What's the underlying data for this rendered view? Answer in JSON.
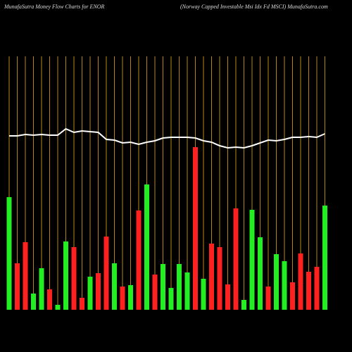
{
  "chart_data": {
    "type": "bar-line",
    "title": "MunafaSutra  Money Flow  Charts for ENOR",
    "subtitle": "(Norway Capped Investable   Msi Idx Fd MSCI) MunafaSutra.com",
    "ylim": [
      0,
      360
    ],
    "grid": true,
    "grid_color": "#b8860b",
    "bars": {
      "values": [
        160,
        66,
        96,
        23,
        59,
        29,
        7,
        97,
        89,
        17,
        47,
        52,
        104,
        66,
        33,
        35,
        141,
        178,
        50,
        65,
        31,
        65,
        53,
        231,
        44,
        94,
        89,
        36,
        144,
        14,
        142,
        103,
        33,
        79,
        69,
        39,
        80,
        54,
        61,
        148
      ],
      "colors": [
        "#22ee22",
        "#ff2020",
        "#ff2020",
        "#22ee22",
        "#22ee22",
        "#ff2020",
        "#22ee22",
        "#22ee22",
        "#ff2020",
        "#ff2020",
        "#22ee22",
        "#ff2020",
        "#ff2020",
        "#22ee22",
        "#ff2020",
        "#22ee22",
        "#ff2020",
        "#22ee22",
        "#ff2020",
        "#22ee22",
        "#22ee22",
        "#22ee22",
        "#22ee22",
        "#ff2020",
        "#22ee22",
        "#ff2020",
        "#ff2020",
        "#ff2020",
        "#ff2020",
        "#22ee22",
        "#22ee22",
        "#22ee22",
        "#ff2020",
        "#22ee22",
        "#22ee22",
        "#ff2020",
        "#ff2020",
        "#ff2020",
        "#ff2020",
        "#22ee22"
      ]
    },
    "line": {
      "color": "#ffffff",
      "values": [
        247,
        247,
        249,
        248,
        249,
        248,
        248,
        257,
        252,
        254,
        253,
        252,
        242,
        241,
        237,
        238,
        235,
        238,
        240,
        244,
        245,
        245,
        245,
        244,
        240,
        238,
        233,
        230,
        231,
        230,
        233,
        237,
        241,
        240,
        242,
        245,
        245,
        246,
        245,
        250
      ]
    }
  }
}
